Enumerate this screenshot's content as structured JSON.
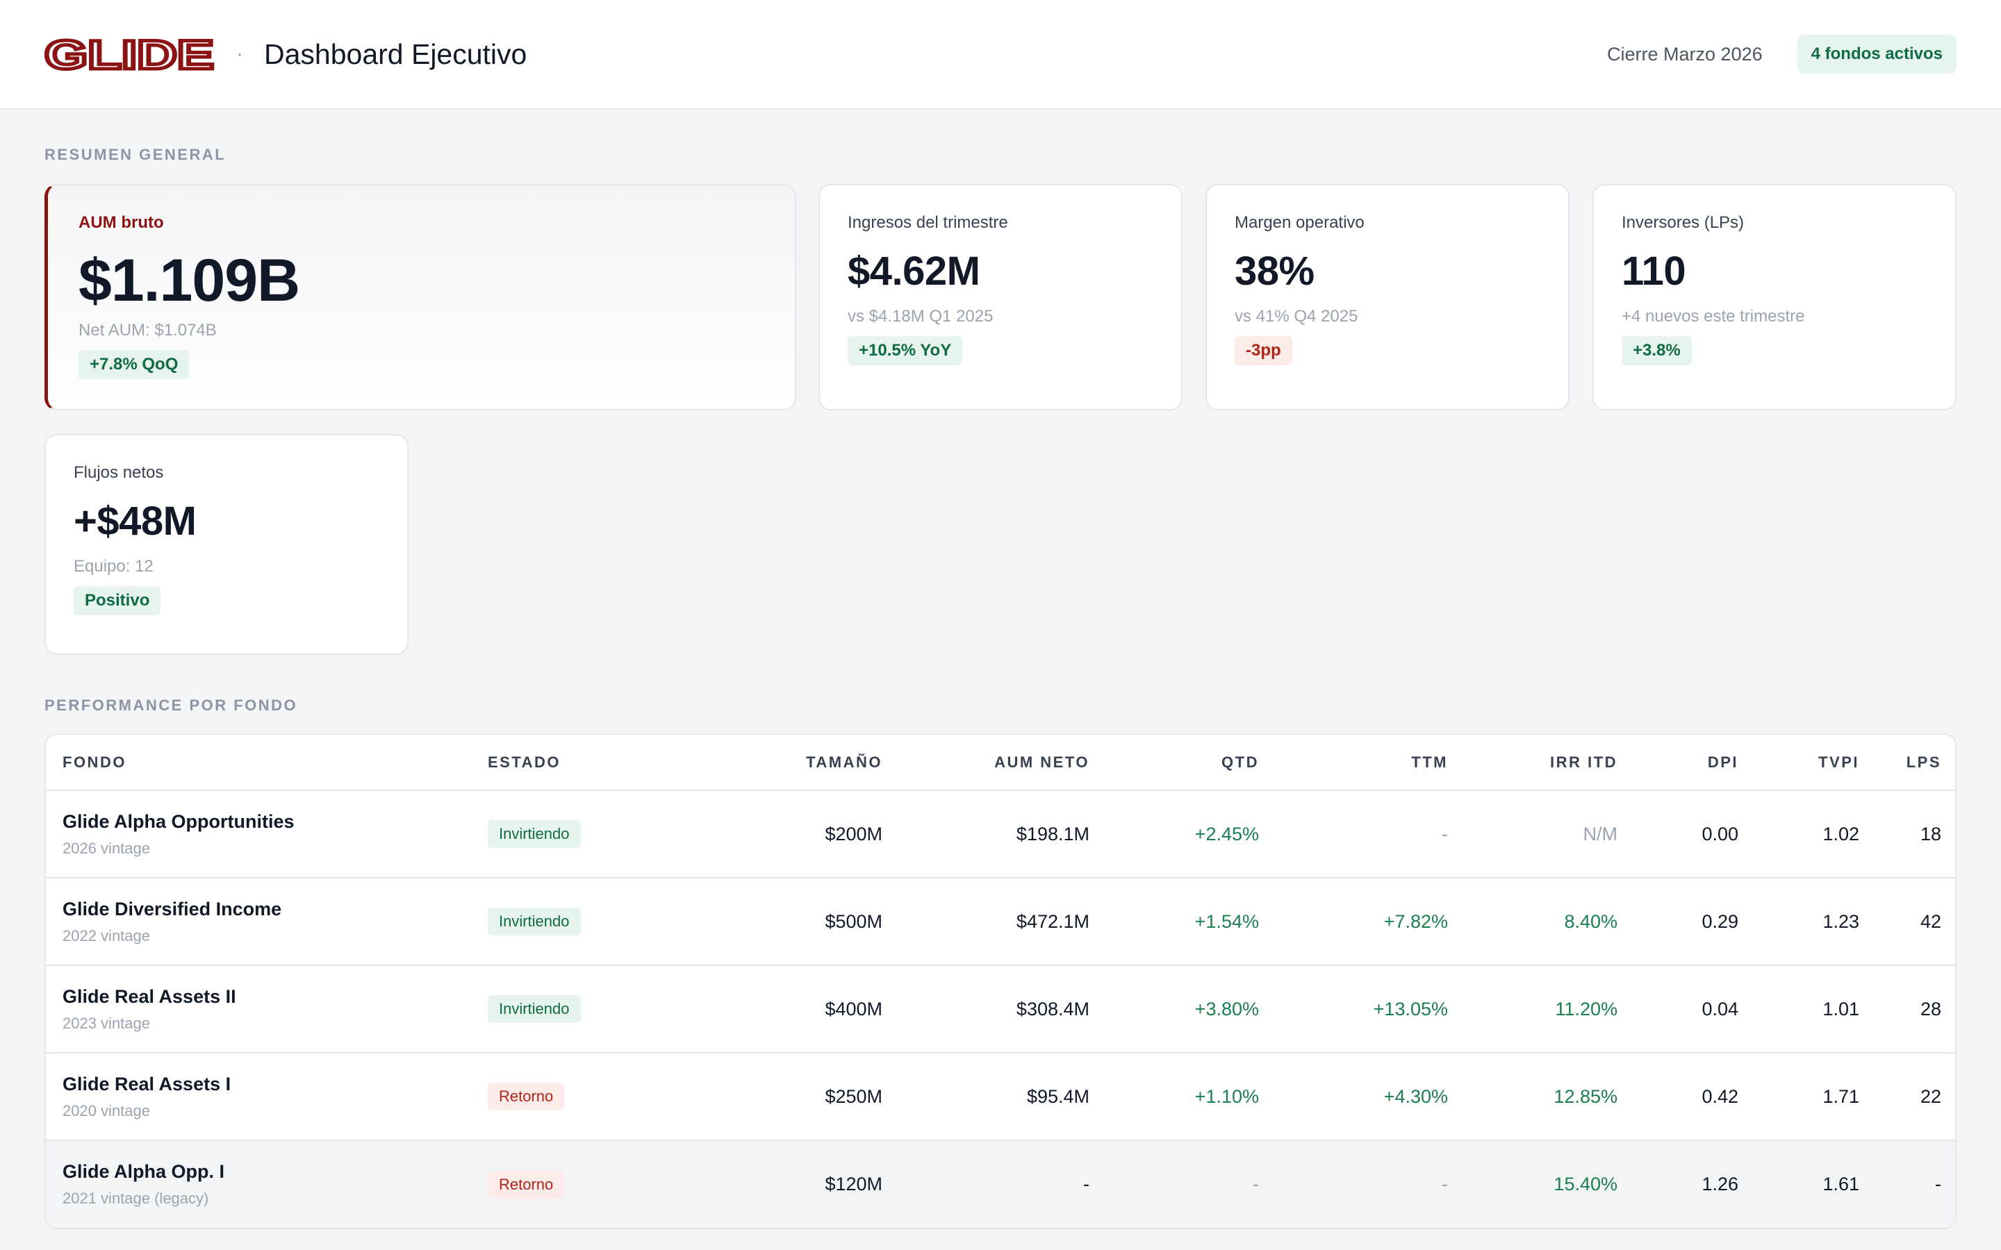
{
  "header": {
    "logo_text": "GLIDE",
    "separator": "·",
    "title": "Dashboard Ejecutivo",
    "period": "Cierre Marzo 2026",
    "active_funds_badge": "4 fondos activos",
    "brand_color": "#8b1313"
  },
  "summary": {
    "section_label": "RESUMEN GENERAL",
    "cards": [
      {
        "label": "AUM bruto",
        "value": "$1.109B",
        "sub": "Net AUM: $1.074B",
        "chip": "+7.8% QoQ",
        "chip_tone": "positive"
      },
      {
        "label": "Ingresos del trimestre",
        "value": "$4.62M",
        "sub": "vs $4.18M Q1 2025",
        "chip": "+10.5% YoY",
        "chip_tone": "positive"
      },
      {
        "label": "Margen operativo",
        "value": "38%",
        "sub": "vs 41% Q4 2025",
        "chip": "-3pp",
        "chip_tone": "negative"
      },
      {
        "label": "Inversores (LPs)",
        "value": "110",
        "sub": "+4 nuevos este trimestre",
        "chip": "+3.8%",
        "chip_tone": "positive"
      },
      {
        "label": "Flujos netos",
        "value": "+$48M",
        "sub": "Equipo: 12",
        "chip": "Positivo",
        "chip_tone": "positive"
      }
    ]
  },
  "performance": {
    "section_label": "PERFORMANCE POR FONDO",
    "columns": [
      "FONDO",
      "ESTADO",
      "TAMAÑO",
      "AUM NETO",
      "QTD",
      "TTM",
      "IRR ITD",
      "DPI",
      "TVPI",
      "LPS"
    ],
    "rows": [
      {
        "name": "Glide Alpha Opportunities",
        "vintage": "2026 vintage",
        "status": "Invirtiendo",
        "size": "$200M",
        "aum": "$198.1M",
        "qtd": "+2.45%",
        "ttm": "-",
        "irr": "N/M",
        "dpi": "0.00",
        "tvpi": "1.02",
        "lps": "18"
      },
      {
        "name": "Glide Diversified Income",
        "vintage": "2022 vintage",
        "status": "Invirtiendo",
        "size": "$500M",
        "aum": "$472.1M",
        "qtd": "+1.54%",
        "ttm": "+7.82%",
        "irr": "8.40%",
        "dpi": "0.29",
        "tvpi": "1.23",
        "lps": "42"
      },
      {
        "name": "Glide Real Assets II",
        "vintage": "2023 vintage",
        "status": "Invirtiendo",
        "size": "$400M",
        "aum": "$308.4M",
        "qtd": "+3.80%",
        "ttm": "+13.05%",
        "irr": "11.20%",
        "dpi": "0.04",
        "tvpi": "1.01",
        "lps": "28"
      },
      {
        "name": "Glide Real Assets I",
        "vintage": "2020 vintage",
        "status": "Retorno",
        "size": "$250M",
        "aum": "$95.4M",
        "qtd": "+1.10%",
        "ttm": "+4.30%",
        "irr": "12.85%",
        "dpi": "0.42",
        "tvpi": "1.71",
        "lps": "22"
      },
      {
        "name": "Glide Alpha Opp. I",
        "vintage": "2021 vintage (legacy)",
        "status": "Retorno",
        "size": "$120M",
        "aum": "-",
        "qtd": "-",
        "ttm": "-",
        "irr": "15.40%",
        "dpi": "1.26",
        "tvpi": "1.61",
        "lps": "-"
      }
    ]
  }
}
